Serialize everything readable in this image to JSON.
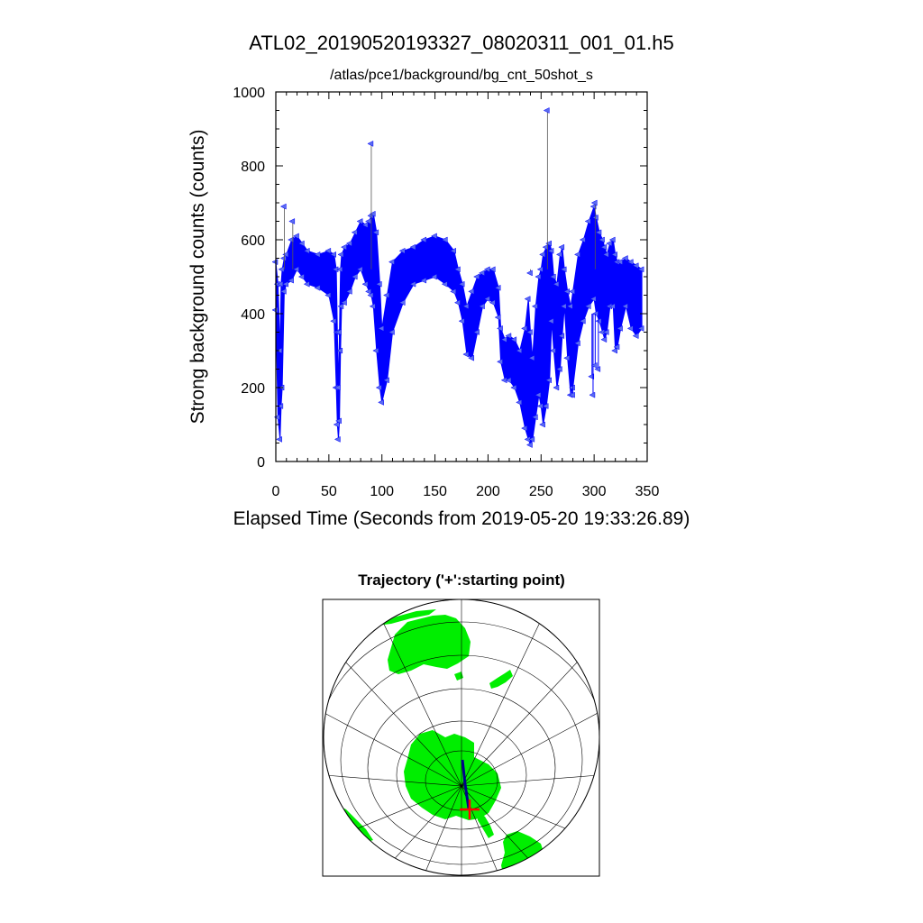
{
  "title": "ATL02_20190520193327_08020311_001_01.h5",
  "subtitle": "/atlas/pce1/background/bg_cnt_50shot_s",
  "colors": {
    "series": "#0000ff",
    "marker": "#5a6cf0",
    "land": "#00ee00",
    "grid": "#000000",
    "track": "#00008b",
    "start_marker": "#ff0000"
  },
  "chart_data": [
    {
      "type": "scatter",
      "title": "ATL02_20190520193327_08020311_001_01.h5",
      "subtitle": "/atlas/pce1/background/bg_cnt_50shot_s",
      "xlabel": "Elapsed Time (Seconds from 2019-05-20 19:33:26.89)",
      "ylabel": "Strong background counts (counts)",
      "xlim": [
        0,
        350
      ],
      "ylim": [
        0,
        1000
      ],
      "xticks": [
        "0",
        "50",
        "100",
        "150",
        "200",
        "250",
        "300",
        "350"
      ],
      "yticks": [
        "0",
        "200",
        "400",
        "600",
        "800",
        "1000"
      ],
      "grid": false,
      "legend": "none",
      "marker": "triangle-left",
      "series": [
        {
          "x": [
            0,
            2,
            4,
            5,
            6,
            8,
            10,
            15,
            20,
            25,
            30,
            40,
            50,
            55,
            57,
            58,
            59,
            60,
            61,
            62,
            65,
            70,
            75,
            80,
            85,
            88,
            90,
            92,
            95,
            98,
            100,
            105,
            110,
            120,
            130,
            140,
            150,
            160,
            168,
            172,
            176,
            180,
            185,
            190,
            195,
            200,
            205,
            210,
            212,
            216,
            220,
            225,
            230,
            235,
            238,
            240,
            242,
            245,
            248,
            250,
            252,
            255,
            258,
            260,
            262,
            265,
            268,
            270,
            272,
            275,
            278,
            280,
            285,
            290,
            295,
            300,
            302,
            305,
            308,
            310,
            312,
            315,
            318,
            320,
            322,
            325,
            330,
            335,
            340,
            345
          ],
          "lower": [
            410,
            120,
            60,
            150,
            200,
            460,
            480,
            490,
            520,
            500,
            480,
            470,
            450,
            380,
            200,
            100,
            60,
            110,
            300,
            420,
            430,
            460,
            500,
            520,
            480,
            460,
            450,
            420,
            300,
            200,
            160,
            220,
            350,
            430,
            480,
            490,
            500,
            480,
            460,
            430,
            380,
            290,
            280,
            350,
            420,
            440,
            430,
            390,
            270,
            220,
            220,
            200,
            160,
            90,
            60,
            45,
            60,
            120,
            180,
            150,
            100,
            150,
            220,
            380,
            300,
            200,
            250,
            340,
            420,
            280,
            180,
            200,
            320,
            380,
            420,
            440,
            400,
            380,
            350,
            330,
            350,
            420,
            420,
            300,
            310,
            360,
            420,
            360,
            340,
            360
          ],
          "upper": [
            540,
            480,
            300,
            480,
            520,
            550,
            560,
            600,
            610,
            590,
            570,
            560,
            570,
            560,
            520,
            350,
            200,
            350,
            520,
            560,
            580,
            590,
            620,
            650,
            640,
            650,
            665,
            670,
            620,
            480,
            360,
            450,
            540,
            570,
            580,
            600,
            610,
            600,
            570,
            520,
            480,
            420,
            460,
            500,
            510,
            520,
            520,
            470,
            360,
            330,
            340,
            330,
            300,
            360,
            440,
            350,
            280,
            420,
            500,
            520,
            560,
            580,
            590,
            570,
            500,
            480,
            560,
            580,
            520,
            460,
            420,
            460,
            560,
            600,
            650,
            690,
            660,
            620,
            600,
            580,
            560,
            590,
            600,
            560,
            540,
            540,
            550,
            540,
            530,
            520
          ]
        }
      ],
      "spikes": [
        {
          "x": 8,
          "y": 690
        },
        {
          "x": 16,
          "y": 650
        },
        {
          "x": 90,
          "y": 860
        },
        {
          "x": 240,
          "y": 510
        },
        {
          "x": 256,
          "y": 950
        },
        {
          "x": 301,
          "y": 700
        }
      ],
      "dropouts": [
        {
          "x": 280,
          "y": 180
        },
        {
          "x": 298,
          "y": 230
        },
        {
          "x": 299,
          "y": 180
        },
        {
          "x": 301,
          "y": 260
        },
        {
          "x": 304,
          "y": 250
        }
      ]
    },
    {
      "type": "map",
      "title": "Trajectory ('+':starting point)",
      "projection": "orthographic, south polar view",
      "start_marker": "+",
      "track": {
        "from": "starting point near Antarctic coast",
        "direction": "northward across Antarctica"
      }
    }
  ]
}
